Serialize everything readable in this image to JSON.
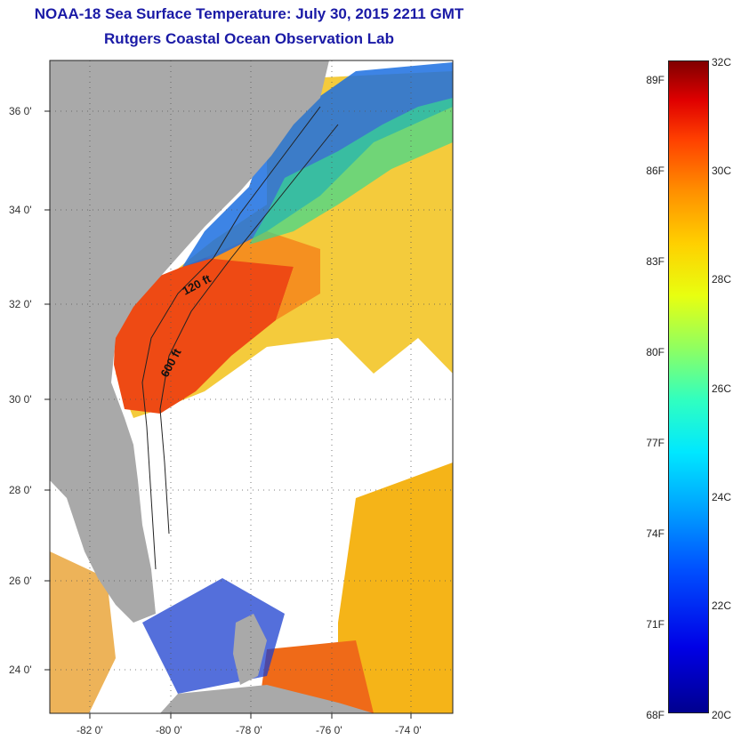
{
  "titles": {
    "line1": "NOAA-18 Sea Surface Temperature:  July 30, 2015 2211 GMT",
    "line2": "Rutgers Coastal Ocean Observation Lab"
  },
  "map": {
    "latitude_labels": [
      "36 0'",
      "34 0'",
      "32 0'",
      "30 0'",
      "28 0'",
      "26 0'",
      "24 0'"
    ],
    "longitude_labels": [
      "-82 0'",
      "-80 0'",
      "-78 0'",
      "-76 0'",
      "-74 0'"
    ],
    "contour_labels": [
      "120 ft",
      "600 ft"
    ],
    "land_color": "#a9a9a9",
    "no_data_color": "#ffffff"
  },
  "colorbar": {
    "fahrenheit_labels": [
      "89F",
      "86F",
      "83F",
      "80F",
      "77F",
      "74F",
      "71F",
      "68F"
    ],
    "celsius_labels": [
      "32C",
      "30C",
      "28C",
      "26C",
      "24C",
      "22C",
      "20C"
    ],
    "min_celsius": 20,
    "max_celsius": 32
  }
}
